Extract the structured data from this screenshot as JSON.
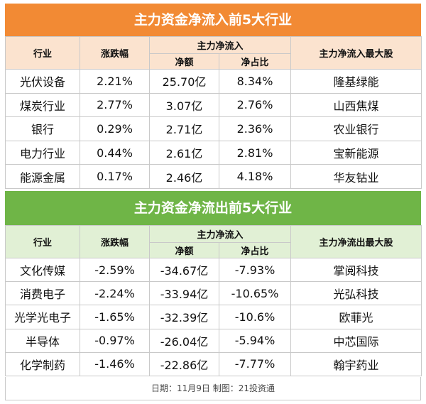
{
  "inflow": {
    "title": "主力资金净流入前5大行业",
    "headers": {
      "industry": "行业",
      "change": "涨跌幅",
      "group": "主力净流入",
      "amount": "净额",
      "ratio": "净占比",
      "top_stock": "主力净流入最大股"
    },
    "rows": [
      {
        "industry": "光伏设备",
        "change": "2.21%",
        "amount": "25.70亿",
        "ratio": "8.34%",
        "top_stock": "隆基绿能"
      },
      {
        "industry": "煤炭行业",
        "change": "2.77%",
        "amount": "3.07亿",
        "ratio": "2.76%",
        "top_stock": "山西焦煤"
      },
      {
        "industry": "银行",
        "change": "0.29%",
        "amount": "2.71亿",
        "ratio": "2.36%",
        "top_stock": "农业银行"
      },
      {
        "industry": "电力行业",
        "change": "0.44%",
        "amount": "2.61亿",
        "ratio": "2.81%",
        "top_stock": "宝新能源"
      },
      {
        "industry": "能源金属",
        "change": "0.17%",
        "amount": "2.46亿",
        "ratio": "4.18%",
        "top_stock": "华友钴业"
      }
    ]
  },
  "outflow": {
    "title": "主力资金净流出前5大行业",
    "headers": {
      "industry": "行业",
      "change": "涨跌幅",
      "group": "主力净流入",
      "amount": "净额",
      "ratio": "净占比",
      "top_stock": "主力净流出最大股"
    },
    "rows": [
      {
        "industry": "文化传媒",
        "change": "-2.59%",
        "amount": "-34.67亿",
        "ratio": "-7.93%",
        "top_stock": "掌阅科技"
      },
      {
        "industry": "消费电子",
        "change": "-2.24%",
        "amount": "-33.94亿",
        "ratio": "-10.65%",
        "top_stock": "光弘科技"
      },
      {
        "industry": "光学光电子",
        "change": "-1.65%",
        "amount": "-32.39亿",
        "ratio": "-10.6%",
        "top_stock": "欧菲光"
      },
      {
        "industry": "半导体",
        "change": "-0.97%",
        "amount": "-26.04亿",
        "ratio": "-5.94%",
        "top_stock": "中芯国际"
      },
      {
        "industry": "化学制药",
        "change": "-1.46%",
        "amount": "-22.86亿",
        "ratio": "-7.77%",
        "top_stock": "翰宇药业"
      }
    ]
  },
  "footer": "日期：11月9日 制图：21投资通",
  "colors": {
    "inflow_title_bg": "#f28a34",
    "inflow_header_bg": "#fbe3cf",
    "outflow_title_bg": "#6fb547",
    "outflow_header_bg": "#e1f0d5"
  }
}
